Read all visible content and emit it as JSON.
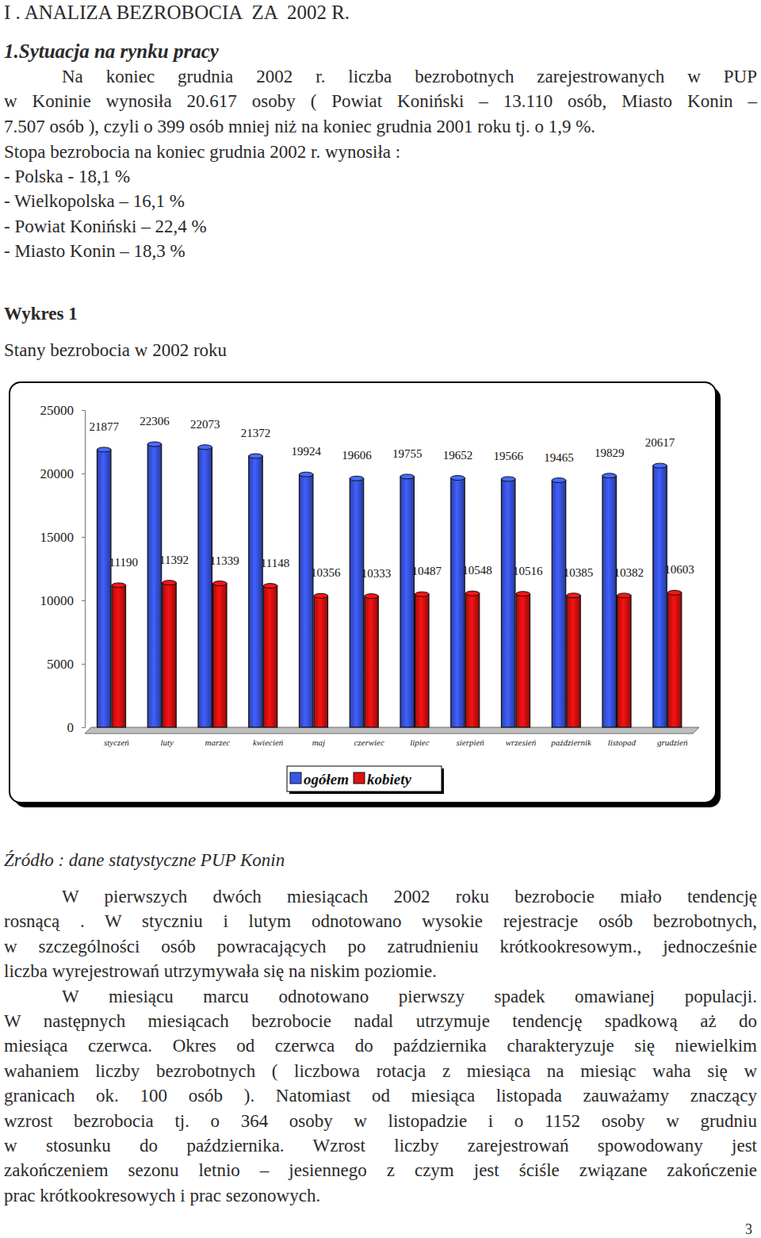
{
  "document": {
    "heading": "I . ANALIZA BEZROBOCIA  ZA  2002 R.",
    "section": "1.Sytuacja na rynku pracy",
    "intro": [
      "Na koniec grudnia 2002 r. liczba bezrobotnych zarejestrowanych w PUP",
      "w Koninie wynosiła 20.617 osoby ( Powiat Koniński – 13.110 osób, Miasto Konin –",
      "7.507 osób ), czyli o 399 osób mniej niż na koniec grudnia 2001 roku tj. o 1,9 %."
    ],
    "rates_intro": "Stopa bezrobocia na koniec grudnia 2002 r. wynosiła :",
    "rates": [
      "- Polska - 18,1 %",
      "- Wielkopolska – 16,1 %",
      "- Powiat Koniński – 22,4 %",
      "- Miasto Konin – 18,3 %"
    ],
    "figure_label": "Wykres 1",
    "source": "Źródło : dane statystyczne PUP Konin",
    "body": [
      [
        "W pierwszych dwóch miesiącach 2002 roku bezrobocie miało tendencję",
        "rosnącą . W styczniu i lutym odnotowano wysokie rejestracje osób bezrobotnych,",
        "w szczególności osób powracających po zatrudnieniu krótkookresowym., jednocześnie",
        "liczba wyrejestrowań utrzymywała się na niskim poziomie."
      ],
      [
        "W miesiącu marcu odnotowano pierwszy spadek omawianej populacji.",
        "W następnych miesiącach bezrobocie nadal utrzymuje tendencję spadkową aż do",
        "miesiąca czerwca. Okres od czerwca do października charakteryzuje się niewielkim",
        "wahaniem liczby bezrobotnych ( liczbowa rotacja z miesiąca na miesiąc waha się w",
        "granicach ok. 100 osób ). Natomiast od miesiąca listopada zauważamy znaczący",
        "wzrost bezrobocia tj. o 364 osoby w listopadzie i o 1152 osoby w grudniu",
        "w stosunku do października. Wzrost liczby zarejestrowań spowodowany jest",
        "zakończeniem sezonu letnio – jesiennego z czym jest ściśle związane zakończenie",
        "prac krótkookresowych i prac sezonowych."
      ]
    ],
    "page_number": "3"
  },
  "chart_data": {
    "type": "bar",
    "title": "Stany bezrobocia w 2002 roku",
    "categories": [
      "styczeń",
      "luty",
      "marzec",
      "kwiecień",
      "maj",
      "czerwiec",
      "lipiec",
      "sierpień",
      "wrzesień",
      "październik",
      "listopad",
      "grudzień"
    ],
    "series": [
      {
        "name": "ogółem",
        "color": "#3a56e8",
        "values": [
          21877,
          22306,
          22073,
          21372,
          19924,
          19606,
          19755,
          19652,
          19566,
          19465,
          19829,
          20617
        ]
      },
      {
        "name": "kobiety",
        "color": "#e01010",
        "values": [
          11190,
          11392,
          11339,
          11148,
          10356,
          10333,
          10487,
          10548,
          10516,
          10385,
          10382,
          10603
        ]
      }
    ],
    "ylim": [
      0,
      25000
    ],
    "yticks": [
      0,
      5000,
      10000,
      15000,
      20000,
      25000
    ],
    "grid": false,
    "data_labels": true,
    "legend": "bottom"
  }
}
